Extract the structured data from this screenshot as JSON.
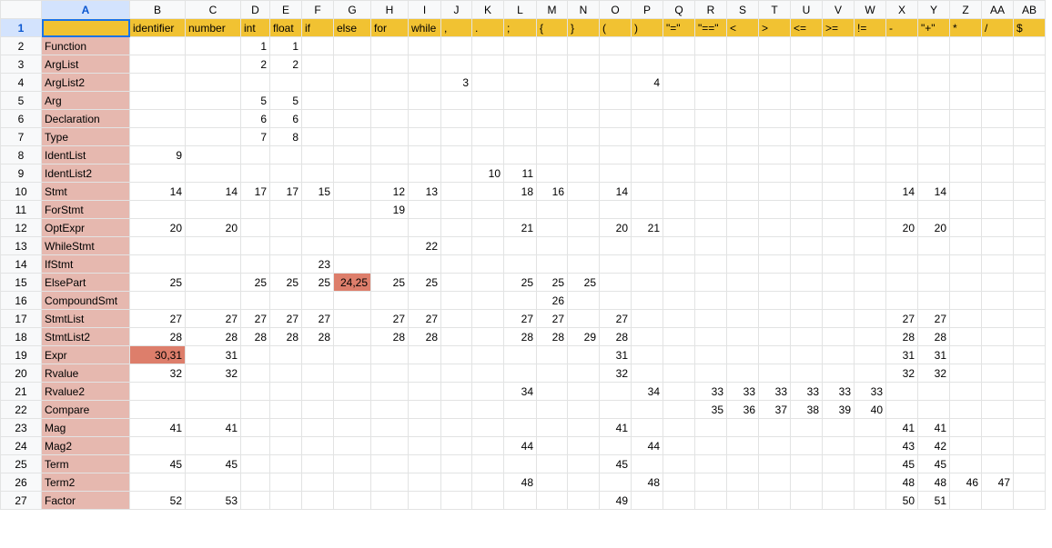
{
  "columns": [
    "A",
    "B",
    "C",
    "D",
    "E",
    "F",
    "G",
    "H",
    "I",
    "J",
    "K",
    "L",
    "M",
    "N",
    "O",
    "P",
    "Q",
    "R",
    "S",
    "T",
    "U",
    "V",
    "W",
    "X",
    "Y",
    "Z",
    "AA",
    "AB"
  ],
  "selected_column": "A",
  "selected_row": "1",
  "header_row": [
    "",
    "identifier",
    "number",
    "int",
    "float",
    "if",
    "else",
    "for",
    "while",
    ",",
    ".",
    ";",
    "{",
    "}",
    "(",
    ")",
    "\"=\"",
    "\"==\"",
    "<",
    ">",
    "<=",
    ">=",
    "!=",
    "-",
    "\"+\"",
    "*",
    "/",
    "$"
  ],
  "rows": [
    {
      "num": "2",
      "name": "Function",
      "cells": {
        "D": "1",
        "E": "1"
      }
    },
    {
      "num": "3",
      "name": "ArgList",
      "cells": {
        "D": "2",
        "E": "2"
      }
    },
    {
      "num": "4",
      "name": "ArgList2",
      "cells": {
        "J": "3",
        "P": "4"
      }
    },
    {
      "num": "5",
      "name": "Arg",
      "cells": {
        "D": "5",
        "E": "5"
      }
    },
    {
      "num": "6",
      "name": "Declaration",
      "cells": {
        "D": "6",
        "E": "6"
      }
    },
    {
      "num": "7",
      "name": "Type",
      "cells": {
        "D": "7",
        "E": "8"
      }
    },
    {
      "num": "8",
      "name": "IdentList",
      "cells": {
        "B": "9"
      }
    },
    {
      "num": "9",
      "name": "IdentList2",
      "cells": {
        "K": "10",
        "L": "11"
      }
    },
    {
      "num": "10",
      "name": "Stmt",
      "cells": {
        "B": "14",
        "C": "14",
        "D": "17",
        "E": "17",
        "F": "15",
        "H": "12",
        "I": "13",
        "L": "18",
        "M": "16",
        "O": "14",
        "X": "14",
        "Y": "14"
      }
    },
    {
      "num": "11",
      "name": "ForStmt",
      "cells": {
        "H": "19"
      }
    },
    {
      "num": "12",
      "name": "OptExpr",
      "cells": {
        "B": "20",
        "C": "20",
        "L": "21",
        "O": "20",
        "P": "21",
        "X": "20",
        "Y": "20"
      }
    },
    {
      "num": "13",
      "name": "WhileStmt",
      "cells": {
        "I": "22"
      }
    },
    {
      "num": "14",
      "name": "IfStmt",
      "cells": {
        "F": "23"
      }
    },
    {
      "num": "15",
      "name": "ElsePart",
      "cells": {
        "B": "25",
        "D": "25",
        "E": "25",
        "F": "25",
        "G": "24,25",
        "H": "25",
        "I": "25",
        "L": "25",
        "M": "25",
        "N": "25"
      }
    },
    {
      "num": "16",
      "name": "CompoundSmt",
      "cells": {
        "M": "26"
      }
    },
    {
      "num": "17",
      "name": "StmtList",
      "cells": {
        "B": "27",
        "C": "27",
        "D": "27",
        "E": "27",
        "F": "27",
        "H": "27",
        "I": "27",
        "L": "27",
        "M": "27",
        "O": "27",
        "X": "27",
        "Y": "27"
      }
    },
    {
      "num": "18",
      "name": "StmtList2",
      "cells": {
        "B": "28",
        "C": "28",
        "D": "28",
        "E": "28",
        "F": "28",
        "H": "28",
        "I": "28",
        "L": "28",
        "M": "28",
        "N": "29",
        "O": "28",
        "X": "28",
        "Y": "28"
      }
    },
    {
      "num": "19",
      "name": "Expr",
      "cells": {
        "B": "30,31",
        "C": "31",
        "O": "31",
        "X": "31",
        "Y": "31"
      }
    },
    {
      "num": "20",
      "name": "Rvalue",
      "cells": {
        "B": "32",
        "C": "32",
        "O": "32",
        "X": "32",
        "Y": "32"
      }
    },
    {
      "num": "21",
      "name": "Rvalue2",
      "cells": {
        "L": "34",
        "P": "34",
        "R": "33",
        "S": "33",
        "T": "33",
        "U": "33",
        "V": "33",
        "W": "33"
      }
    },
    {
      "num": "22",
      "name": "Compare",
      "cells": {
        "R": "35",
        "S": "36",
        "T": "37",
        "U": "38",
        "V": "39",
        "W": "40"
      }
    },
    {
      "num": "23",
      "name": "Mag",
      "cells": {
        "B": "41",
        "C": "41",
        "O": "41",
        "X": "41",
        "Y": "41"
      }
    },
    {
      "num": "24",
      "name": "Mag2",
      "cells": {
        "L": "44",
        "P": "44",
        "X": "43",
        "Y": "42"
      }
    },
    {
      "num": "25",
      "name": "Term",
      "cells": {
        "B": "45",
        "C": "45",
        "O": "45",
        "X": "45",
        "Y": "45"
      }
    },
    {
      "num": "26",
      "name": "Term2",
      "cells": {
        "L": "48",
        "P": "48",
        "X": "48",
        "Y": "48",
        "Z": "46",
        "AA": "47"
      }
    },
    {
      "num": "27",
      "name": "Factor",
      "cells": {
        "B": "52",
        "C": "53",
        "O": "49",
        "X": "50",
        "Y": "51"
      }
    }
  ],
  "conflict_cells": [
    "G15",
    "B19"
  ],
  "colors": {
    "header_fill": "#f1c232",
    "name_fill": "#e6b8af",
    "conflict_fill": "#dd7e6b",
    "selection": "#1a73e8"
  }
}
